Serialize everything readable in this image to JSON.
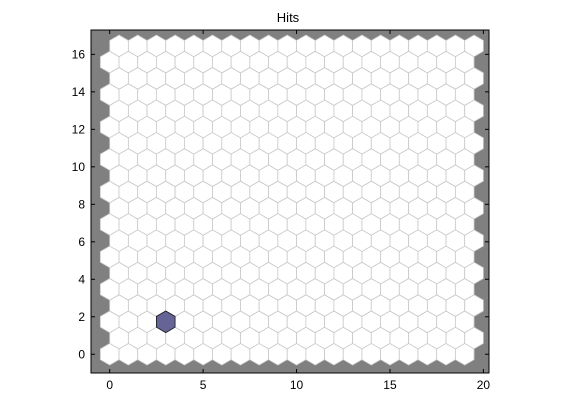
{
  "chart_data": {
    "type": "heatmap",
    "subtype": "som-hits-hexagonal",
    "title": "Hits",
    "xlabel": "",
    "ylabel": "",
    "grid_columns": 20,
    "grid_rows": 20,
    "xlim": [
      -1,
      20.3
    ],
    "ylim": [
      -1,
      17.3
    ],
    "x_ticks": [
      0,
      5,
      10,
      15,
      20
    ],
    "y_ticks": [
      0,
      2,
      4,
      6,
      8,
      10,
      12,
      14,
      16
    ],
    "background_color": "#808080",
    "cell_fill_color": "#ffffff",
    "cell_edge_color": "#c8c8c8",
    "hit_color": "#646496",
    "hits": [
      {
        "x": 3,
        "y": 1.7321,
        "count": 1
      }
    ]
  }
}
